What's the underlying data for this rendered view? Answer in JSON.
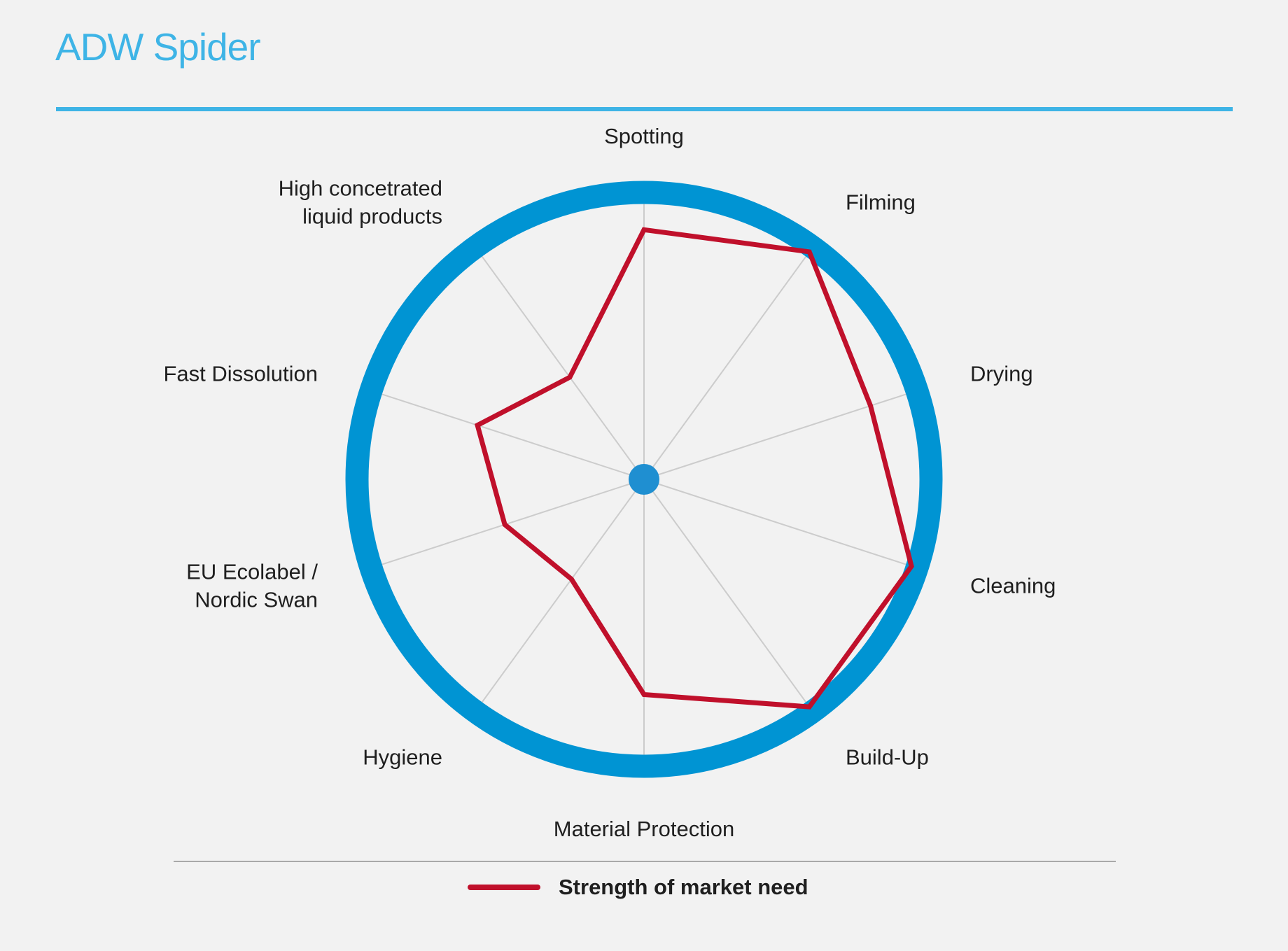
{
  "page": {
    "title": "ADW Spider"
  },
  "chart_data": {
    "type": "radar",
    "title": "ADW Spider",
    "categories": [
      [
        "Spotting"
      ],
      [
        "Filming"
      ],
      [
        "Drying"
      ],
      [
        "Cleaning"
      ],
      [
        "Build-Up"
      ],
      [
        "Material Protection"
      ],
      [
        "Hygiene"
      ],
      [
        "EU Ecolabel /",
        "Nordic Swan"
      ],
      [
        "Fast Dissolution"
      ],
      [
        "High concetrated",
        "liquid products"
      ]
    ],
    "series": [
      {
        "name": "Strength of market need",
        "values": [
          0.87,
          0.98,
          0.83,
          0.98,
          0.98,
          0.75,
          0.43,
          0.51,
          0.61,
          0.44
        ],
        "color": "#c0102b"
      }
    ],
    "rlim": [
      0,
      1
    ],
    "legend": "bottom-center",
    "colors": {
      "ring": "#0094d3",
      "center": "#1f8fd1",
      "spokes": "#cccccc",
      "title": "#3eb4e6"
    }
  }
}
